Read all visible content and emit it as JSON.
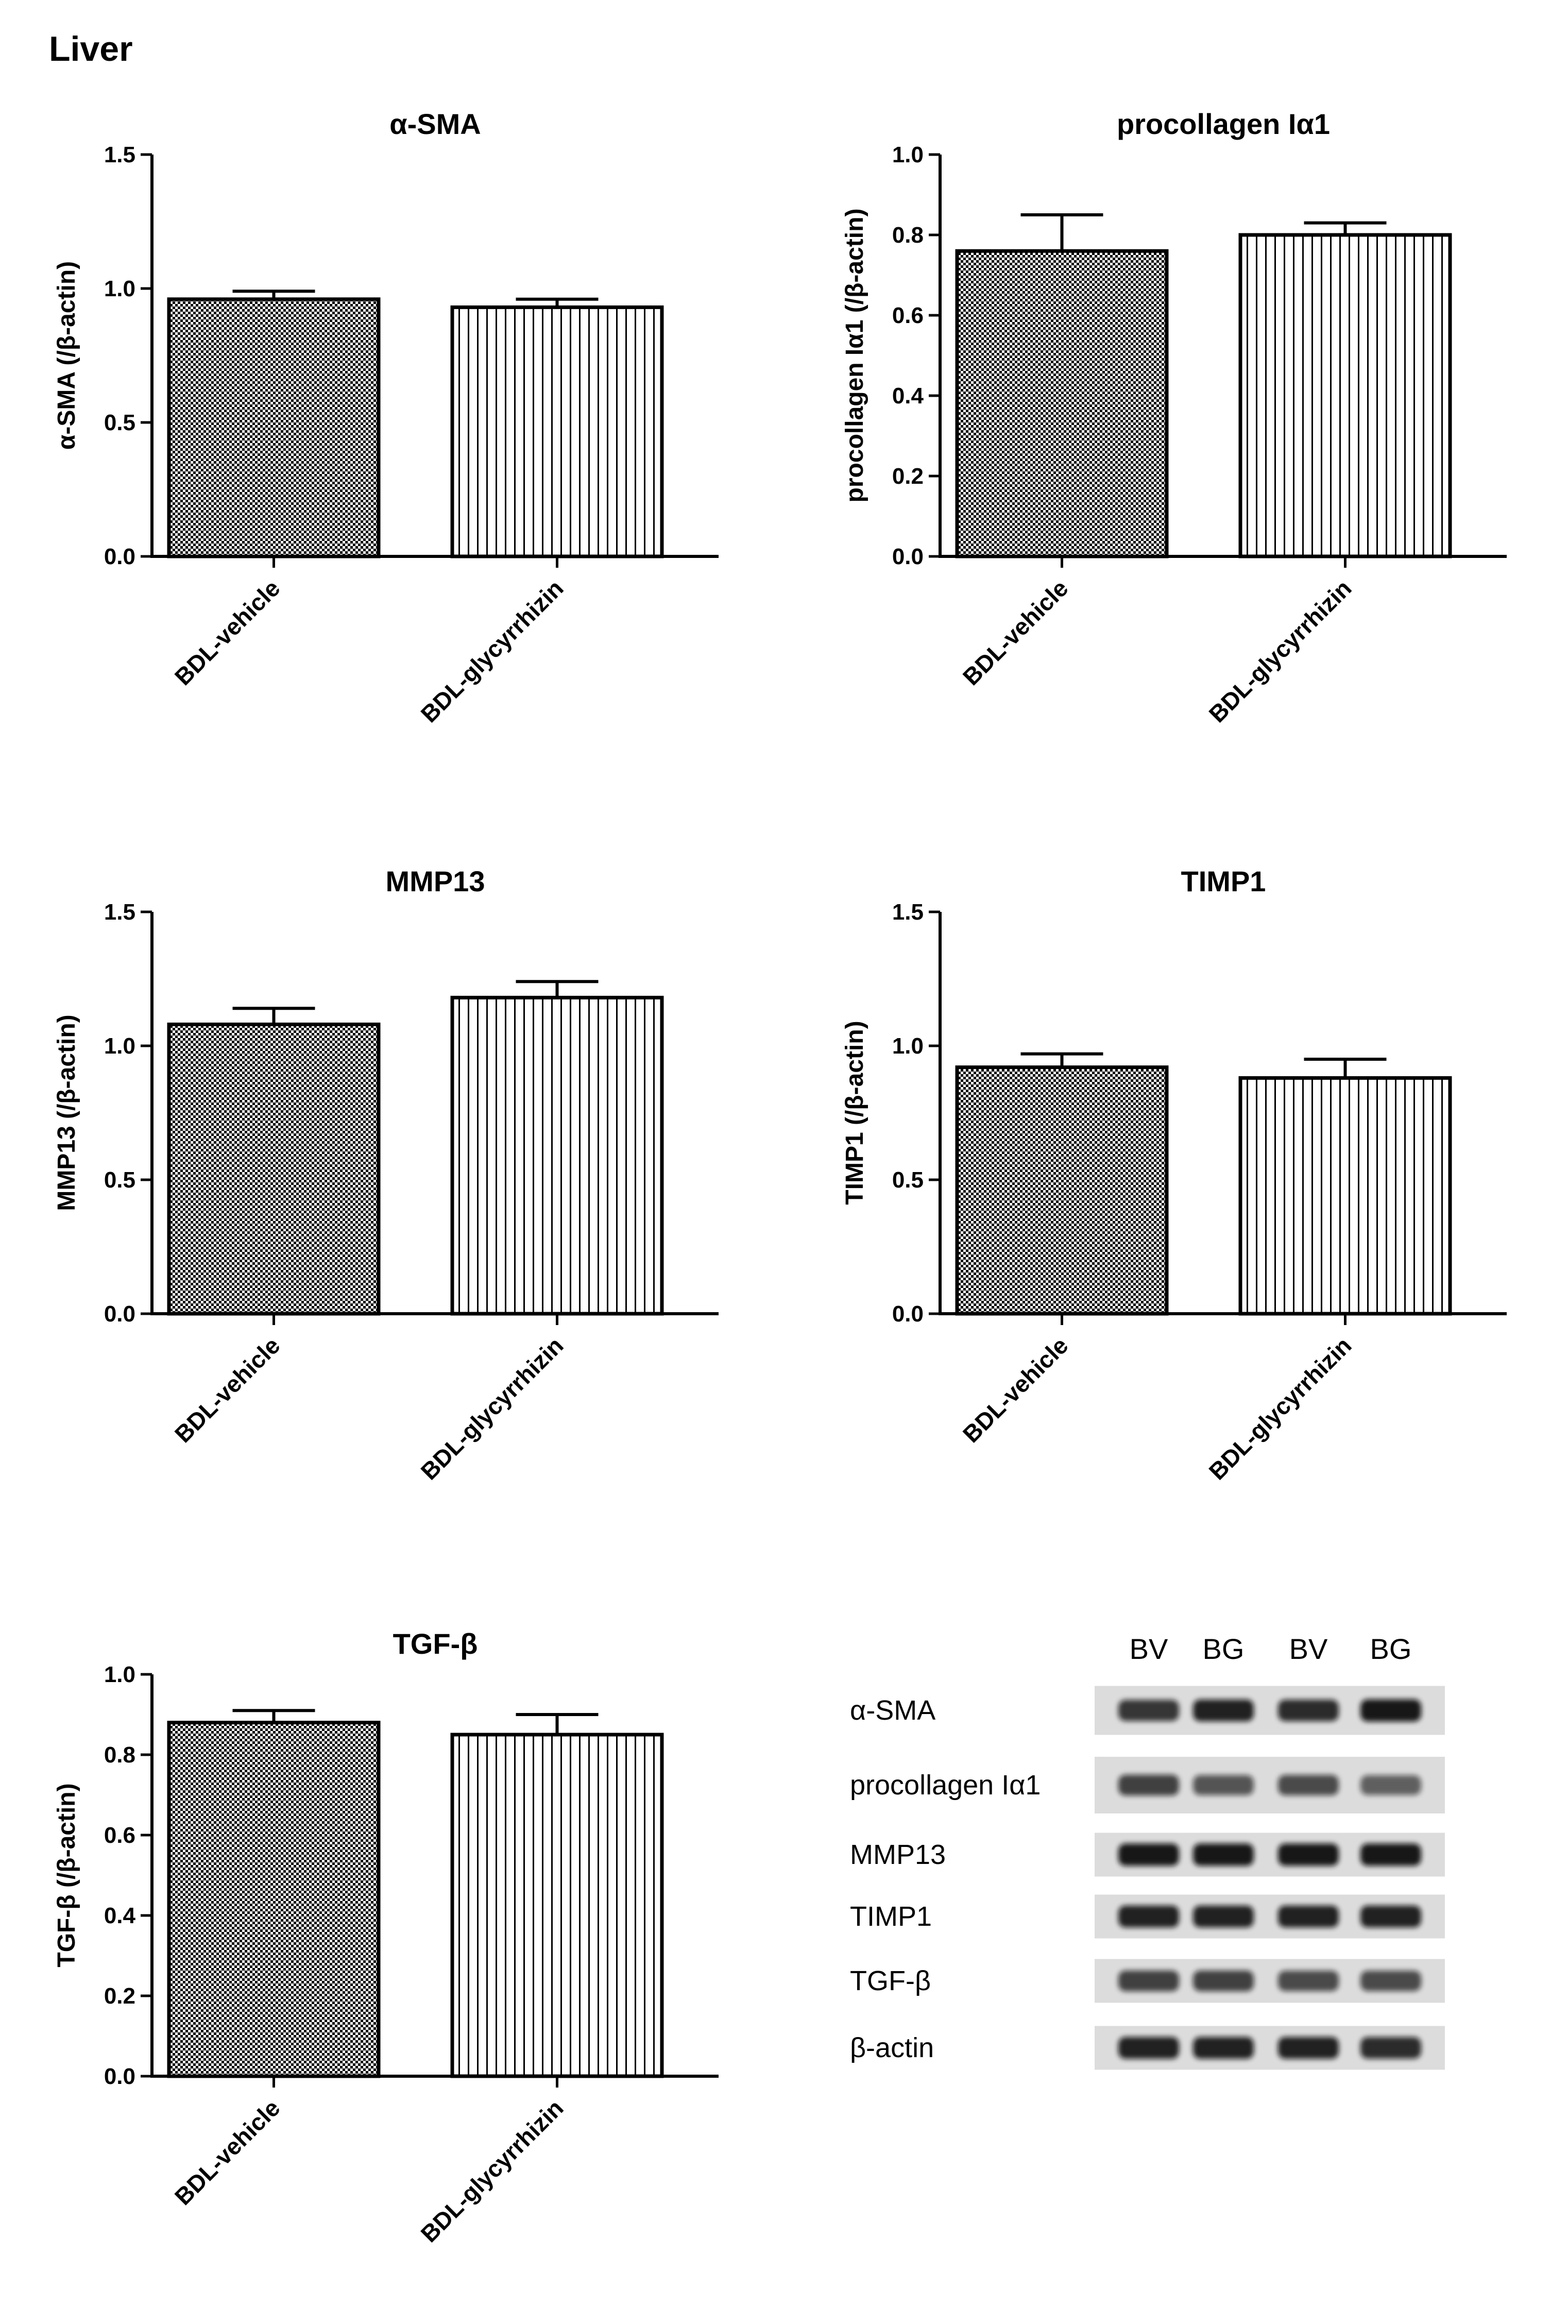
{
  "figure": {
    "title": "Liver"
  },
  "chart_data": [
    {
      "type": "bar",
      "title": "α-SMA",
      "ylabel": "α-SMA (/β-actin)",
      "categories": [
        "BDL-vehicle",
        "BDL-glycyrrhizin"
      ],
      "values": [
        0.96,
        0.93
      ],
      "errors": [
        0.03,
        0.03
      ],
      "ylim": [
        0,
        1.5
      ],
      "yticks": [
        "0.0",
        "0.5",
        "1.0",
        "1.5"
      ]
    },
    {
      "type": "bar",
      "title": "procollagen Iα1",
      "ylabel": "procollagen Iα1 (/β-actin)",
      "categories": [
        "BDL-vehicle",
        "BDL-glycyrrhizin"
      ],
      "values": [
        0.76,
        0.8
      ],
      "errors": [
        0.09,
        0.03
      ],
      "ylim": [
        0,
        1.0
      ],
      "yticks": [
        "0.0",
        "0.2",
        "0.4",
        "0.6",
        "0.8",
        "1.0"
      ]
    },
    {
      "type": "bar",
      "title": "MMP13",
      "ylabel": "MMP13 (/β-actin)",
      "categories": [
        "BDL-vehicle",
        "BDL-glycyrrhizin"
      ],
      "values": [
        1.08,
        1.18
      ],
      "errors": [
        0.06,
        0.06
      ],
      "ylim": [
        0,
        1.5
      ],
      "yticks": [
        "0.0",
        "0.5",
        "1.0",
        "1.5"
      ]
    },
    {
      "type": "bar",
      "title": "TIMP1",
      "ylabel": "TIMP1 (/β-actin)",
      "categories": [
        "BDL-vehicle",
        "BDL-glycyrrhizin"
      ],
      "values": [
        0.92,
        0.88
      ],
      "errors": [
        0.05,
        0.07
      ],
      "ylim": [
        0,
        1.5
      ],
      "yticks": [
        "0.0",
        "0.5",
        "1.0",
        "1.5"
      ]
    },
    {
      "type": "bar",
      "title": "TGF-β",
      "ylabel": "TGF-β (/β-actin)",
      "categories": [
        "BDL-vehicle",
        "BDL-glycyrrhizin"
      ],
      "values": [
        0.88,
        0.85
      ],
      "errors": [
        0.03,
        0.05
      ],
      "ylim": [
        0,
        1.0
      ],
      "yticks": [
        "0.0",
        "0.2",
        "0.4",
        "0.6",
        "0.8",
        "1.0"
      ]
    }
  ],
  "western_blot": {
    "lanes": [
      "BV",
      "BG",
      "BV",
      "BG"
    ],
    "rows": [
      {
        "label": "α-SMA",
        "intensity": [
          0.8,
          0.9,
          0.85,
          0.95
        ]
      },
      {
        "label": "procollagen Iα1",
        "intensity": [
          0.75,
          0.65,
          0.7,
          0.6
        ]
      },
      {
        "label": "MMP13",
        "intensity": [
          0.95,
          0.95,
          0.95,
          0.95
        ]
      },
      {
        "label": "TIMP1",
        "intensity": [
          0.9,
          0.9,
          0.9,
          0.9
        ]
      },
      {
        "label": "TGF-β",
        "intensity": [
          0.75,
          0.75,
          0.7,
          0.7
        ]
      },
      {
        "label": "β-actin",
        "intensity": [
          0.9,
          0.9,
          0.9,
          0.85
        ]
      }
    ]
  },
  "colors": {
    "ink": "#000000",
    "background": "#ffffff",
    "blot_background": "#dcdcdc",
    "band": "#111111"
  }
}
